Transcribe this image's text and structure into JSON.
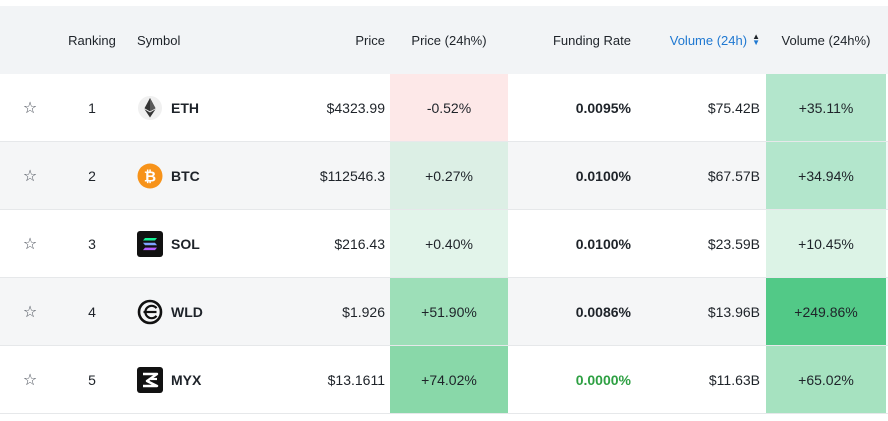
{
  "header": {
    "ranking": "Ranking",
    "symbol": "Symbol",
    "price": "Price",
    "price_24h": "Price (24h%)",
    "funding_rate": "Funding Rate",
    "volume_24h": "Volume (24h)",
    "volume_24h_pct": "Volume (24h%)"
  },
  "colors": {
    "accent": "#1f78d1",
    "positive_funding": "#2ea043"
  },
  "rows": [
    {
      "rank": "1",
      "symbol": "ETH",
      "icon": "eth-icon",
      "price": "$4323.99",
      "price_24h": "-0.52%",
      "price_24h_bg": "#fde8e8",
      "funding": "0.0095%",
      "volume": "$75.42B",
      "volume_24h": "+35.11%",
      "volume_24h_bg": "#b3e6cc"
    },
    {
      "rank": "2",
      "symbol": "BTC",
      "icon": "btc-icon",
      "price": "$112546.3",
      "price_24h": "+0.27%",
      "price_24h_bg": "#dcefe5",
      "funding": "0.0100%",
      "volume": "$67.57B",
      "volume_24h": "+34.94%",
      "volume_24h_bg": "#b3e6cc"
    },
    {
      "rank": "3",
      "symbol": "SOL",
      "icon": "sol-icon",
      "price": "$216.43",
      "price_24h": "+0.40%",
      "price_24h_bg": "#e2f4ea",
      "funding": "0.0100%",
      "volume": "$23.59B",
      "volume_24h": "+10.45%",
      "volume_24h_bg": "#dcf3e6"
    },
    {
      "rank": "4",
      "symbol": "WLD",
      "icon": "wld-icon",
      "price": "$1.926",
      "price_24h": "+51.90%",
      "price_24h_bg": "#9ddfb8",
      "funding": "0.0086%",
      "volume": "$13.96B",
      "volume_24h": "+249.86%",
      "volume_24h_bg": "#52c987"
    },
    {
      "rank": "5",
      "symbol": "MYX",
      "icon": "myx-icon",
      "price": "$13.1611",
      "price_24h": "+74.02%",
      "price_24h_bg": "#89d8a9",
      "funding": "0.0000%",
      "funding_color": "#2ea043",
      "volume": "$11.63B",
      "volume_24h": "+65.02%",
      "volume_24h_bg": "#a6e2c0"
    }
  ]
}
